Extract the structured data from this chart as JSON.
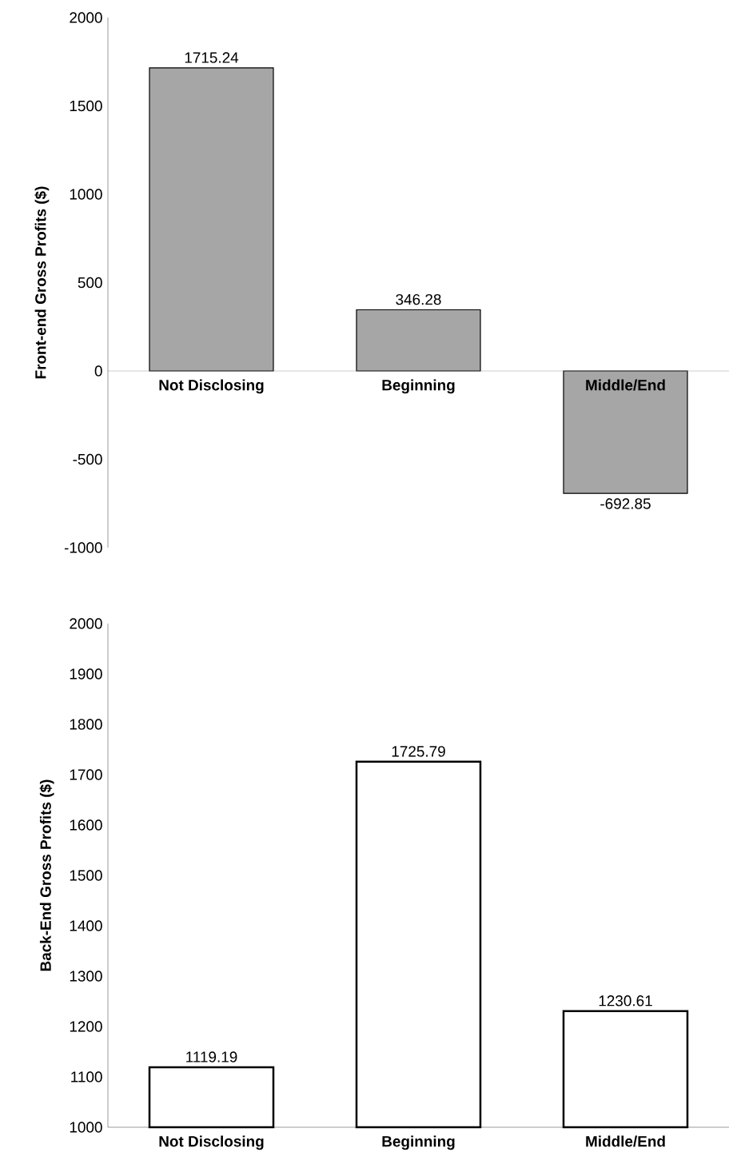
{
  "chart_data": [
    {
      "type": "bar",
      "ylabel": "Front-end Gross Profits ($)",
      "categories": [
        "Not Disclosing",
        "Beginning",
        "Middle/End"
      ],
      "values": [
        1715.24,
        346.28,
        -692.85
      ],
      "color": "#a6a6a6",
      "ylim": [
        -1000,
        2000
      ],
      "yticks": [
        -1000,
        -500,
        0,
        500,
        1000,
        1500,
        2000
      ],
      "data_labels": true
    },
    {
      "type": "bar",
      "ylabel": "Back-End Gross Profits ($)",
      "categories": [
        "Not Disclosing",
        "Beginning",
        "Middle/End"
      ],
      "values": [
        1119.19,
        1725.79,
        1230.61
      ],
      "color": "#ffffff",
      "ylim": [
        1000,
        2000
      ],
      "yticks": [
        1000,
        1100,
        1200,
        1300,
        1400,
        1500,
        1600,
        1700,
        1800,
        1900,
        2000
      ],
      "data_labels": true
    }
  ]
}
